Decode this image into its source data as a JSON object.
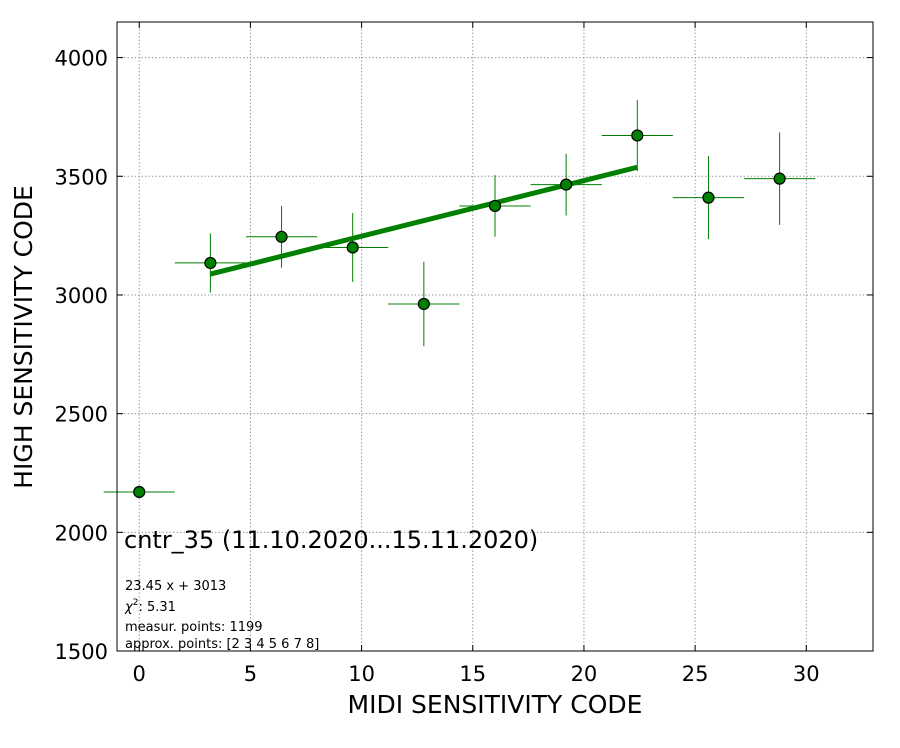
{
  "chart_data": {
    "type": "scatter",
    "xlabel": "MIDI SENSITIVITY CODE",
    "ylabel": "HIGH SENSITIVITY CODE",
    "xlim": [
      -1,
      33
    ],
    "ylim": [
      1500,
      4150
    ],
    "xticks": [
      0,
      5,
      10,
      15,
      20,
      25,
      30
    ],
    "yticks": [
      1500,
      2000,
      2500,
      3000,
      3500,
      4000
    ],
    "grid": true,
    "colors": {
      "points": "#008000",
      "fit_line": "#008000",
      "error_bars": "#008000",
      "marker_edge": "#000000"
    },
    "points": [
      {
        "x": 0.0,
        "y": 2170,
        "xerr": 1.6,
        "yerr": 0
      },
      {
        "x": 3.2,
        "y": 3135,
        "xerr": 1.6,
        "yerr": 125
      },
      {
        "x": 6.4,
        "y": 3245,
        "xerr": 1.6,
        "yerr": 130
      },
      {
        "x": 9.6,
        "y": 3200,
        "xerr": 1.6,
        "yerr": 145
      },
      {
        "x": 12.8,
        "y": 2962,
        "xerr": 1.6,
        "yerr": 178
      },
      {
        "x": 16.0,
        "y": 3375,
        "xerr": 1.6,
        "yerr": 130
      },
      {
        "x": 19.2,
        "y": 3465,
        "xerr": 1.6,
        "yerr": 130
      },
      {
        "x": 22.4,
        "y": 3672,
        "xerr": 1.6,
        "yerr": 150
      },
      {
        "x": 25.6,
        "y": 3410,
        "xerr": 1.6,
        "yerr": 175
      },
      {
        "x": 28.8,
        "y": 3490,
        "xerr": 1.6,
        "yerr": 195
      }
    ],
    "fit_line": {
      "slope": 23.45,
      "intercept": 3013,
      "x_range": [
        3.2,
        22.4
      ]
    },
    "annotations": {
      "title": "cntr_35 (11.10.2020...15.11.2020)",
      "equation": "23.45 x + 3013",
      "chi2_symbol": "χ",
      "chi2_exp": "2",
      "chi2_value": ": 5.31",
      "measur": "measur. points: 1199",
      "approx": "approx. points: [2 3 4 5 6 7 8]"
    }
  }
}
